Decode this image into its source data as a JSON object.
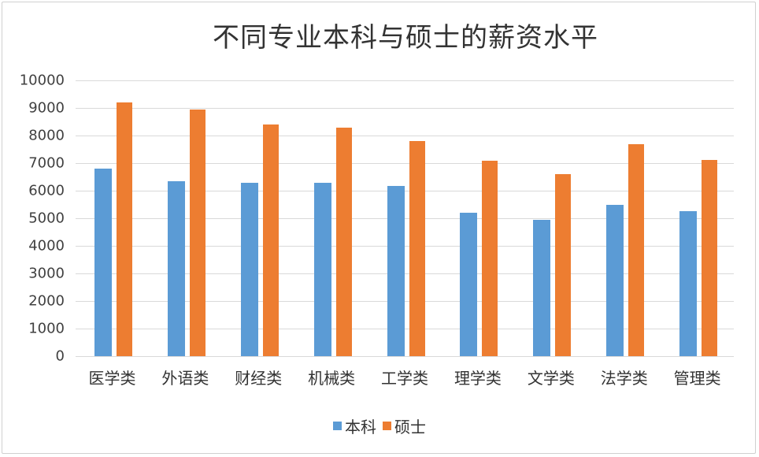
{
  "chart_data": {
    "type": "bar",
    "title": "不同专业本科与硕士的薪资水平",
    "xlabel": "",
    "ylabel": "",
    "ylim": [
      0,
      10000
    ],
    "yticks": [
      0,
      1000,
      2000,
      3000,
      4000,
      5000,
      6000,
      7000,
      8000,
      9000,
      10000
    ],
    "ytick_labels": [
      "0",
      "1000",
      "2000",
      "3000",
      "4000",
      "5000",
      "6000",
      "7000",
      "8000",
      "9000",
      "10000"
    ],
    "grid": true,
    "legend_position": "bottom",
    "categories": [
      "医学类",
      "外语类",
      "财经类",
      "机械类",
      "工学类",
      "理学类",
      "文学类",
      "法学类",
      "管理类"
    ],
    "series": [
      {
        "name": "本科",
        "color": "#5b9bd5",
        "values": [
          6800,
          6350,
          6280,
          6280,
          6170,
          5200,
          4950,
          5480,
          5260
        ]
      },
      {
        "name": "硕士",
        "color": "#ed7d31",
        "values": [
          9200,
          8950,
          8400,
          8300,
          7800,
          7080,
          6600,
          7700,
          7120
        ]
      }
    ]
  }
}
